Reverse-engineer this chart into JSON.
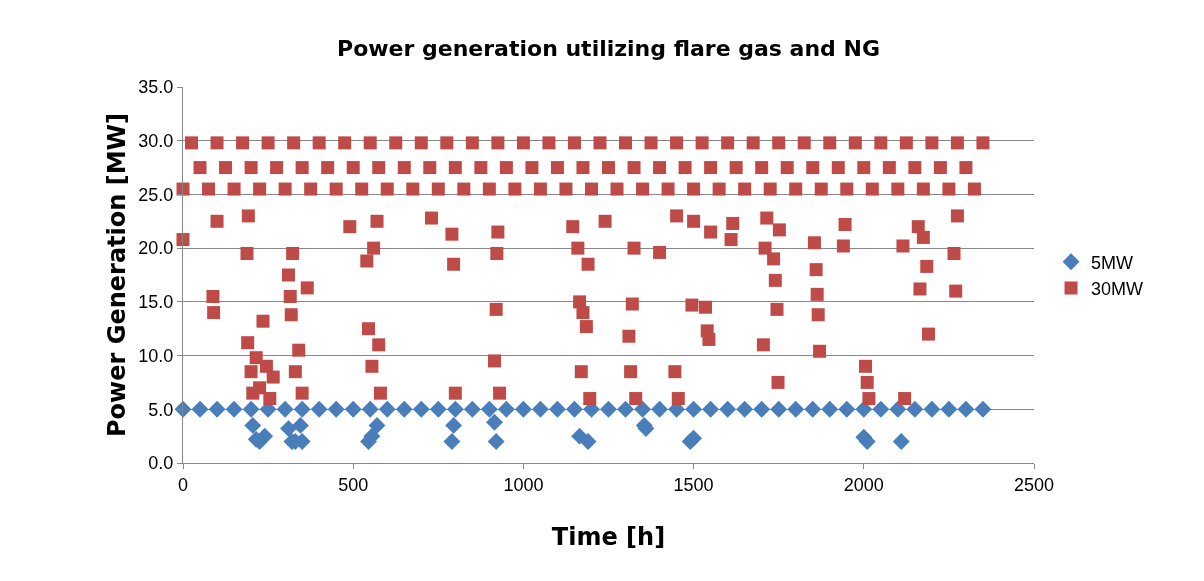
{
  "chart_data": {
    "type": "scatter",
    "title": "Power generation utilizing flare gas and NG",
    "xlabel": "Time [h]",
    "ylabel": "Power Generation [MW]",
    "xlim": [
      0,
      2500
    ],
    "xticks": [
      0,
      500,
      1000,
      1500,
      2000,
      2500
    ],
    "ylim": [
      0,
      35
    ],
    "yticks": [
      {
        "value": 0,
        "label": "0.0"
      },
      {
        "value": 5,
        "label": "5.0"
      },
      {
        "value": 10,
        "label": "10.0"
      },
      {
        "value": 15,
        "label": "15.0"
      },
      {
        "value": 20,
        "label": "20.0"
      },
      {
        "value": 25,
        "label": "25.0"
      },
      {
        "value": 30,
        "label": "30.0"
      },
      {
        "value": 35,
        "label": "35.0"
      }
    ],
    "grid": "y",
    "legend": "right",
    "series": [
      {
        "name": "5MW",
        "color": "#4a7ebb",
        "marker": "diamond",
        "x": [
          0,
          50,
          100,
          150,
          200,
          250,
          300,
          350,
          400,
          450,
          500,
          550,
          600,
          650,
          700,
          750,
          800,
          850,
          900,
          950,
          1000,
          1050,
          1100,
          1150,
          1200,
          1250,
          1300,
          1350,
          1400,
          1450,
          1500,
          1550,
          1600,
          1650,
          1700,
          1750,
          1800,
          1850,
          1900,
          1950,
          2000,
          2050,
          2100,
          2150,
          2200,
          2250,
          2300,
          2350,
          205,
          215,
          225,
          240,
          310,
          320,
          330,
          345,
          350,
          545,
          555,
          570,
          790,
          795,
          915,
          920,
          1165,
          1190,
          1355,
          1360,
          1490,
          1500,
          2000,
          2010,
          2110
        ],
        "values": [
          5,
          5,
          5,
          5,
          5,
          5,
          5,
          5,
          5,
          5,
          5,
          5,
          5,
          5,
          5,
          5,
          5,
          5,
          5,
          5,
          5,
          5,
          5,
          5,
          5,
          5,
          5,
          5,
          5,
          5,
          5,
          5,
          5,
          5,
          5,
          5,
          5,
          5,
          5,
          5,
          5,
          5,
          5,
          5,
          5,
          5,
          5,
          5,
          3.5,
          2.2,
          2,
          2.5,
          3.2,
          2,
          2,
          3.5,
          2,
          2,
          2.5,
          3.5,
          2,
          3.5,
          3.8,
          2,
          2.5,
          2,
          3.5,
          3.2,
          2,
          2.3,
          2.4,
          2,
          2
        ]
      },
      {
        "name": "30MW",
        "color": "#be4b48",
        "marker": "square",
        "x": [
          0,
          25,
          50,
          75,
          100,
          125,
          150,
          175,
          200,
          225,
          250,
          275,
          300,
          325,
          350,
          375,
          400,
          425,
          450,
          475,
          500,
          525,
          550,
          575,
          600,
          625,
          650,
          675,
          700,
          725,
          750,
          775,
          800,
          825,
          850,
          875,
          900,
          925,
          950,
          975,
          1000,
          1025,
          1050,
          1075,
          1100,
          1125,
          1150,
          1175,
          1200,
          1225,
          1250,
          1275,
          1300,
          1325,
          1350,
          1375,
          1400,
          1425,
          1450,
          1475,
          1500,
          1525,
          1550,
          1575,
          1600,
          1625,
          1650,
          1675,
          1700,
          1725,
          1750,
          1775,
          1800,
          1825,
          1850,
          1875,
          1900,
          1925,
          1950,
          1975,
          2000,
          2025,
          2050,
          2075,
          2100,
          2125,
          2150,
          2175,
          2200,
          2225,
          2250,
          2275,
          2300,
          2325,
          2350,
          0,
          88,
          90,
          100,
          188,
          190,
          192,
          200,
          205,
          215,
          225,
          235,
          245,
          255,
          265,
          310,
          315,
          318,
          322,
          330,
          340,
          350,
          365,
          490,
          540,
          545,
          555,
          560,
          570,
          575,
          580,
          730,
          790,
          795,
          800,
          915,
          920,
          922,
          925,
          930,
          1145,
          1160,
          1165,
          1170,
          1175,
          1185,
          1190,
          1195,
          1240,
          1310,
          1315,
          1320,
          1325,
          1330,
          1400,
          1450,
          1445,
          1455,
          1495,
          1500,
          1535,
          1540,
          1545,
          1550,
          1610,
          1615,
          1705,
          1710,
          1715,
          1735,
          1740,
          1745,
          1748,
          1752,
          1855,
          1860,
          1863,
          1866,
          1870,
          1940,
          1945,
          2005,
          2010,
          2015,
          2115,
          2120,
          2160,
          2165,
          2175,
          2185,
          2190,
          2265,
          2270,
          2275
        ],
        "values": [
          25.5,
          29.8,
          27.5,
          25.5,
          29.8,
          27.5,
          25.5,
          29.8,
          27.5,
          25.5,
          29.8,
          27.5,
          25.5,
          29.8,
          27.5,
          25.5,
          29.8,
          27.5,
          25.5,
          29.8,
          27.5,
          25.5,
          29.8,
          27.5,
          25.5,
          29.8,
          27.5,
          25.5,
          29.8,
          27.5,
          25.5,
          29.8,
          27.5,
          25.5,
          29.8,
          27.5,
          25.5,
          29.8,
          27.5,
          25.5,
          29.8,
          27.5,
          25.5,
          29.8,
          27.5,
          25.5,
          29.8,
          27.5,
          25.5,
          29.8,
          27.5,
          25.5,
          29.8,
          27.5,
          25.5,
          29.8,
          27.5,
          25.5,
          29.8,
          27.5,
          25.5,
          29.8,
          27.5,
          25.5,
          29.8,
          27.5,
          25.5,
          29.8,
          27.5,
          25.5,
          29.8,
          27.5,
          25.5,
          29.8,
          27.5,
          25.5,
          29.8,
          27.5,
          25.5,
          29.8,
          27.5,
          25.5,
          29.8,
          27.5,
          25.5,
          29.8,
          27.5,
          25.5,
          29.8,
          27.5,
          25.5,
          29.8,
          27.5,
          25.5,
          29.8,
          20.8,
          15.5,
          14,
          22.5,
          19.5,
          11.2,
          23,
          8.5,
          6.5,
          9.8,
          7,
          13.2,
          9,
          6,
          8,
          17.5,
          15.5,
          13.8,
          19.5,
          8.5,
          10.5,
          6.5,
          16.3,
          22,
          18.8,
          12.5,
          9,
          20,
          22.5,
          11,
          6.5,
          22.8,
          21.3,
          18.5,
          6.5,
          9.5,
          14.3,
          19.5,
          21.5,
          6.5,
          22,
          20,
          15,
          8.5,
          14,
          12.7,
          18.5,
          6,
          22.5,
          11.8,
          8.5,
          14.8,
          20,
          6,
          19.6,
          23,
          8.5,
          6,
          14.7,
          22.5,
          14.5,
          12.3,
          11.5,
          21.5,
          20.8,
          22.3,
          11,
          20,
          22.8,
          19,
          17,
          14.3,
          7.5,
          21.7,
          20.5,
          18,
          15.7,
          13.8,
          10.4,
          20.2,
          22.2,
          9,
          7.5,
          6,
          20.2,
          6,
          22,
          16.2,
          21,
          18.3,
          12,
          19.5,
          16,
          23
        ]
      }
    ]
  }
}
